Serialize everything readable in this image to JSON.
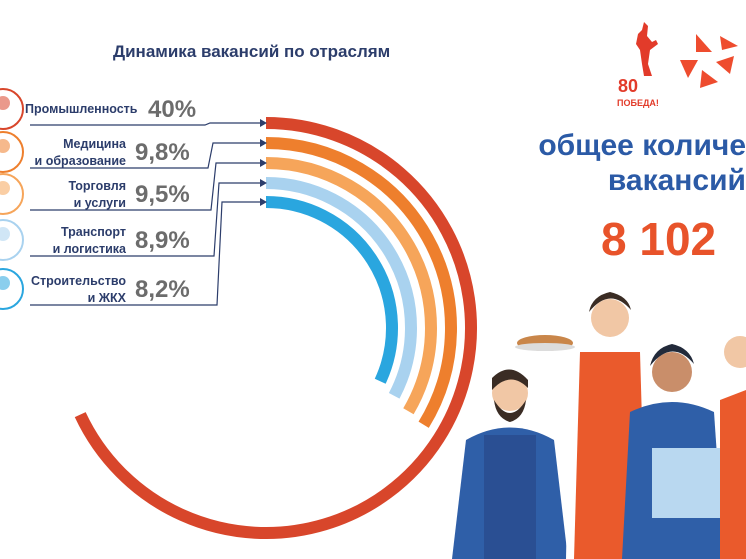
{
  "chart_data": {
    "type": "radial-bar",
    "title": "Динамика вакансий по отраслям",
    "categories": [
      "Промышленность",
      "Медицина\nи образование",
      "Торговля\nи услуги",
      "Транспорт\nи логистика",
      "Строительство\nи ЖКХ"
    ],
    "values": [
      40,
      9.8,
      9.5,
      8.9,
      8.2
    ],
    "value_labels": [
      "40%",
      "9,8%",
      "9,5%",
      "8,9%",
      "8,2%"
    ],
    "unit": "%",
    "colors": [
      "#d8462b",
      "#ee7f2d",
      "#f6a55a",
      "#a9d2ef",
      "#2aa6df"
    ],
    "icon_names": [
      "factory-worker-icon",
      "doctor-icon",
      "shop-worker-icon",
      "courier-icon",
      "builder-icon"
    ]
  },
  "headline": {
    "line1": "общее количе",
    "line2": "вакансий",
    "total": "8 102"
  },
  "logo": {
    "anniversary_number": "80",
    "anniversary_text": "ПОБЕДА!"
  },
  "colors": {
    "title": "#2c3d6b",
    "headline": "#2b5aa6",
    "total": "#e8532a",
    "label_text": "#2c3d6b",
    "value_text": "#6c6c6c"
  }
}
